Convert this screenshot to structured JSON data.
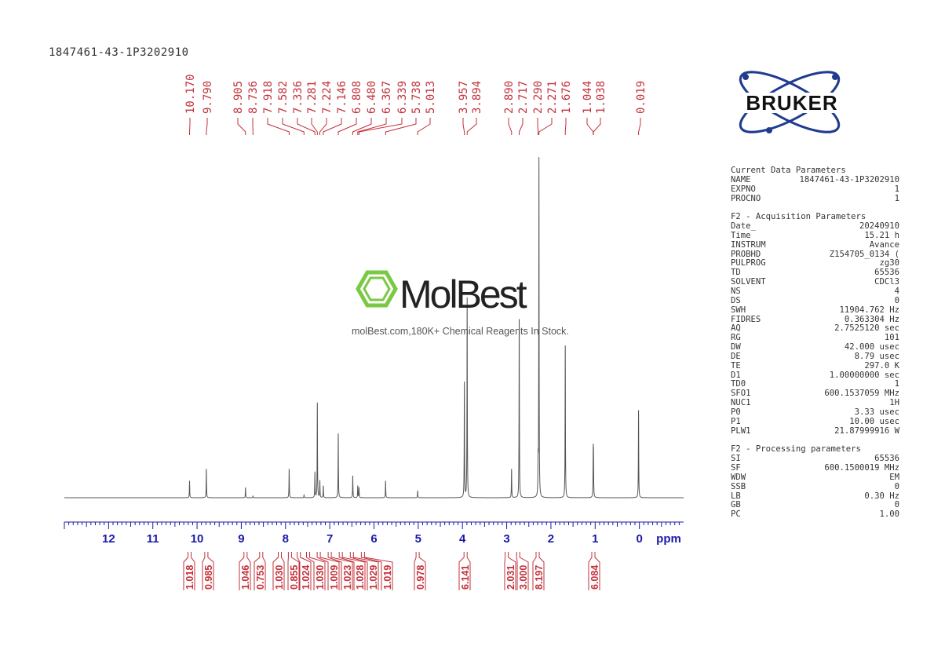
{
  "sample_id": "1847461-43-1P3202910",
  "watermark": {
    "brand": "MolBest",
    "tagline": "molBest.com,180K+ Chemical Reagents In Stock."
  },
  "logo": {
    "text": "BRUKER",
    "icon": "atom-orbit-icon"
  },
  "colors": {
    "peak_labels": "#c2303a",
    "axis": "#1a1aa8",
    "spectrum": "#555555",
    "watermark_green": "#7ac943",
    "logo_blue": "#1f3c8f"
  },
  "parameters": {
    "current_title": "Current Data Parameters",
    "current": [
      {
        "k": "NAME",
        "v": "1847461-43-1P3202910"
      },
      {
        "k": "EXPNO",
        "v": "1"
      },
      {
        "k": "PROCNO",
        "v": "1"
      }
    ],
    "acq_title": "F2 - Acquisition Parameters",
    "acq": [
      {
        "k": "Date_",
        "v": "20240910"
      },
      {
        "k": "Time",
        "v": "15.21 h"
      },
      {
        "k": "INSTRUM",
        "v": "Avance"
      },
      {
        "k": "PROBHD",
        "v": "Z154705_0134 ("
      },
      {
        "k": "PULPROG",
        "v": "zg30"
      },
      {
        "k": "TD",
        "v": "65536"
      },
      {
        "k": "SOLVENT",
        "v": "CDCl3"
      },
      {
        "k": "NS",
        "v": "4"
      },
      {
        "k": "DS",
        "v": "0"
      },
      {
        "k": "SWH",
        "v": "11904.762 Hz"
      },
      {
        "k": "FIDRES",
        "v": "0.363304 Hz"
      },
      {
        "k": "AQ",
        "v": "2.7525120 sec"
      },
      {
        "k": "RG",
        "v": "101"
      },
      {
        "k": "DW",
        "v": "42.000 usec"
      },
      {
        "k": "DE",
        "v": "8.79 usec"
      },
      {
        "k": "TE",
        "v": "297.0 K"
      },
      {
        "k": "D1",
        "v": "1.00000000 sec"
      },
      {
        "k": "TD0",
        "v": "1"
      },
      {
        "k": "SFO1",
        "v": "600.1537059 MHz"
      },
      {
        "k": "NUC1",
        "v": "1H"
      },
      {
        "k": "P0",
        "v": "3.33 usec"
      },
      {
        "k": "P1",
        "v": "10.00 usec"
      },
      {
        "k": "PLW1",
        "v": "21.87999916 W"
      }
    ],
    "proc_title": "F2 - Processing parameters",
    "proc": [
      {
        "k": "SI",
        "v": "65536"
      },
      {
        "k": "SF",
        "v": "600.1500019 MHz"
      },
      {
        "k": "WDW",
        "v": "EM"
      },
      {
        "k": "SSB",
        "v": "0"
      },
      {
        "k": "LB",
        "v": "0.30 Hz"
      },
      {
        "k": "GB",
        "v": "0"
      },
      {
        "k": "PC",
        "v": "1.00"
      }
    ]
  },
  "chart_data": {
    "type": "line",
    "xlabel": "ppm",
    "xlim": [
      13.0,
      -1.0
    ],
    "x_ticks": [
      12,
      11,
      10,
      9,
      8,
      7,
      6,
      5,
      4,
      3,
      2,
      1,
      0
    ],
    "peak_labels": [
      "10.170",
      "9.790",
      "8.905",
      "8.736",
      "7.918",
      "7.582",
      "7.336",
      "7.281",
      "7.224",
      "7.146",
      "6.808",
      "6.480",
      "6.367",
      "6.339",
      "5.738",
      "5.013",
      "3.957",
      "3.894",
      "2.890",
      "2.717",
      "2.290",
      "2.271",
      "1.676",
      "1.044",
      "1.038",
      "0.019"
    ],
    "peaks": [
      {
        "ppm": 10.17,
        "height": 0.05
      },
      {
        "ppm": 9.79,
        "height": 0.085
      },
      {
        "ppm": 8.905,
        "height": 0.03
      },
      {
        "ppm": 8.736,
        "height": 0.005
      },
      {
        "ppm": 7.918,
        "height": 0.085
      },
      {
        "ppm": 7.582,
        "height": 0.008
      },
      {
        "ppm": 7.336,
        "height": 0.075
      },
      {
        "ppm": 7.281,
        "height": 0.28
      },
      {
        "ppm": 7.224,
        "height": 0.05
      },
      {
        "ppm": 7.146,
        "height": 0.035
      },
      {
        "ppm": 6.808,
        "height": 0.19
      },
      {
        "ppm": 6.48,
        "height": 0.065
      },
      {
        "ppm": 6.367,
        "height": 0.035
      },
      {
        "ppm": 6.339,
        "height": 0.03
      },
      {
        "ppm": 5.738,
        "height": 0.05
      },
      {
        "ppm": 5.013,
        "height": 0.02
      },
      {
        "ppm": 3.957,
        "height": 0.34
      },
      {
        "ppm": 3.894,
        "height": 0.59
      },
      {
        "ppm": 2.89,
        "height": 0.085
      },
      {
        "ppm": 2.717,
        "height": 0.53
      },
      {
        "ppm": 2.29,
        "height": 0.09
      },
      {
        "ppm": 2.271,
        "height": 1.0
      },
      {
        "ppm": 1.676,
        "height": 0.45
      },
      {
        "ppm": 1.044,
        "height": 0.12
      },
      {
        "ppm": 1.038,
        "height": 0.1
      },
      {
        "ppm": 0.019,
        "height": 0.26
      }
    ],
    "integrals": [
      {
        "value": "1.018",
        "ppm": 10.17
      },
      {
        "value": "0.985",
        "ppm": 9.79
      },
      {
        "value": "1.046",
        "ppm": 8.905
      },
      {
        "value": "0.753",
        "ppm": 8.55
      },
      {
        "value": "1.030",
        "ppm": 8.13
      },
      {
        "value": "0.855",
        "ppm": 7.9
      },
      {
        "value": "1.024",
        "ppm": 7.7
      },
      {
        "value": "1.030",
        "ppm": 7.49
      },
      {
        "value": "1.009",
        "ppm": 7.25
      },
      {
        "value": "1.023",
        "ppm": 7.0
      },
      {
        "value": "1.028",
        "ppm": 6.75
      },
      {
        "value": "1.029",
        "ppm": 6.5
      },
      {
        "value": "1.019",
        "ppm": 6.25
      },
      {
        "value": "0.978",
        "ppm": 5.013
      },
      {
        "value": "6.141",
        "ppm": 3.93
      },
      {
        "value": "2.031",
        "ppm": 3.0
      },
      {
        "value": "3.000",
        "ppm": 2.74
      },
      {
        "value": "8.197",
        "ppm": 2.3
      },
      {
        "value": "6.084",
        "ppm": 1.04
      }
    ]
  }
}
